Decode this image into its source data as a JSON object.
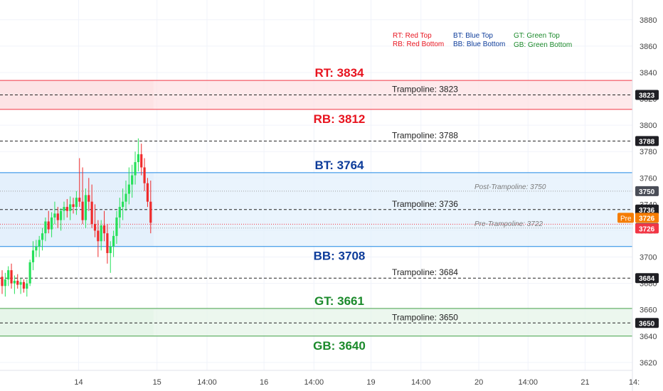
{
  "chart_data": {
    "type": "candlestick",
    "ylim": [
      3614,
      3895
    ],
    "y_ticks": [
      "3620",
      "3640",
      "3660",
      "3680",
      "3700",
      "3720",
      "3740",
      "3760",
      "3780",
      "3800",
      "3820",
      "3840",
      "3860",
      "3880"
    ],
    "x_ticks": [
      {
        "label": "14",
        "pos": 0.1186
      },
      {
        "label": "15",
        "pos": 0.2368
      },
      {
        "label": "14:00",
        "pos": 0.3122
      },
      {
        "label": "16",
        "pos": 0.3982
      },
      {
        "label": "14:00",
        "pos": 0.4735
      },
      {
        "label": "19",
        "pos": 0.5596
      },
      {
        "label": "14:00",
        "pos": 0.6349
      },
      {
        "label": "20",
        "pos": 0.7222
      },
      {
        "label": "14:00",
        "pos": 0.7964
      },
      {
        "label": "21",
        "pos": 0.8825
      },
      {
        "label": "14:",
        "pos": 0.9566
      }
    ],
    "zones": [
      {
        "name": "RT/RB",
        "top": 3834,
        "bottom": 3812,
        "color": "#f23645",
        "fill": "#fde2e4"
      },
      {
        "name": "BT/BB",
        "top": 3764,
        "bottom": 3708,
        "color": "#2962ff",
        "fill": "#e3f0fc"
      },
      {
        "name": "GT/GB",
        "top": 3661,
        "bottom": 3640,
        "color": "#089981",
        "fill": "#e6f4e8"
      }
    ],
    "levels": [
      {
        "label": "RT: 3834",
        "value": 3834,
        "color": "#f23645",
        "text_color": "#e8141f",
        "label_above": true
      },
      {
        "label": "RB: 3812",
        "value": 3812,
        "color": "#f23645",
        "text_color": "#e8141f",
        "label_above": false
      },
      {
        "label": "BT: 3764",
        "value": 3764,
        "color": "#1e88e5",
        "text_color": "#0d3c9a",
        "label_above": true
      },
      {
        "label": "BB: 3708",
        "value": 3708,
        "color": "#1e88e5",
        "text_color": "#0d3c9a",
        "label_above": false
      },
      {
        "label": "GT: 3661",
        "value": 3661,
        "color": "#43a047",
        "text_color": "#1b8a2b",
        "label_above": true
      },
      {
        "label": "GB: 3640",
        "value": 3640,
        "color": "#43a047",
        "text_color": "#1b8a2b",
        "label_above": false
      }
    ],
    "trampolines": [
      {
        "label": "Trampoline: 3823",
        "value": 3823,
        "tag": "3823"
      },
      {
        "label": "Trampoline: 3788",
        "value": 3788,
        "tag": "3788"
      },
      {
        "label": "Trampoline: 3736",
        "value": 3736,
        "tag": "3736"
      },
      {
        "label": "Trampoline: 3684",
        "value": 3684,
        "tag": "3684"
      },
      {
        "label": "Trampoline: 3650",
        "value": 3650,
        "tag": "3650"
      }
    ],
    "minor_levels": [
      {
        "label": "Post-Trampoline: 3750",
        "value": 3750,
        "tag": "3750"
      },
      {
        "label": "Pre-Trampoline: 3722",
        "value": 3722,
        "tag": "3722"
      }
    ],
    "current_price": {
      "value": 3726,
      "tag": "3726",
      "color": "#f23645"
    },
    "premarket": {
      "value": 3726,
      "tag": "3726",
      "label": "Pre",
      "color": "#f57c00"
    },
    "legend": [
      {
        "text": "RT: Red Top",
        "color": "#e8141f"
      },
      {
        "text": "RB: Red Bottom",
        "color": "#e8141f"
      },
      {
        "text": "BT: Blue Top",
        "color": "#0d3c9a"
      },
      {
        "text": "BB: Blue Bottom",
        "color": "#0d3c9a"
      },
      {
        "text": "GT: Green Top",
        "color": "#1b8a2b"
      },
      {
        "text": "GB: Green Bottom",
        "color": "#1b8a2b"
      }
    ],
    "up_color": "#26e05a",
    "down_color": "#ef2b2b",
    "candles": [
      [
        3685,
        3690,
        3672,
        3678
      ],
      [
        3678,
        3688,
        3670,
        3683
      ],
      [
        3683,
        3693,
        3678,
        3690
      ],
      [
        3690,
        3695,
        3676,
        3680
      ],
      [
        3680,
        3686,
        3672,
        3682
      ],
      [
        3682,
        3687,
        3676,
        3679
      ],
      [
        3679,
        3684,
        3672,
        3681
      ],
      [
        3681,
        3683,
        3673,
        3676
      ],
      [
        3676,
        3683,
        3670,
        3680
      ],
      [
        3680,
        3698,
        3678,
        3696
      ],
      [
        3696,
        3712,
        3690,
        3705
      ],
      [
        3705,
        3713,
        3700,
        3708
      ],
      [
        3708,
        3716,
        3700,
        3713
      ],
      [
        3713,
        3722,
        3705,
        3718
      ],
      [
        3718,
        3730,
        3712,
        3727
      ],
      [
        3727,
        3735,
        3718,
        3721
      ],
      [
        3721,
        3734,
        3715,
        3730
      ],
      [
        3730,
        3742,
        3725,
        3733
      ],
      [
        3733,
        3738,
        3722,
        3728
      ],
      [
        3728,
        3737,
        3720,
        3735
      ],
      [
        3735,
        3742,
        3728,
        3738
      ],
      [
        3738,
        3744,
        3730,
        3735
      ],
      [
        3735,
        3746,
        3728,
        3740
      ],
      [
        3740,
        3745,
        3733,
        3738
      ],
      [
        3738,
        3750,
        3732,
        3745
      ],
      [
        3745,
        3775,
        3738,
        3742
      ],
      [
        3742,
        3768,
        3725,
        3728
      ],
      [
        3728,
        3752,
        3722,
        3747
      ],
      [
        3747,
        3760,
        3735,
        3742
      ],
      [
        3742,
        3755,
        3722,
        3725
      ],
      [
        3725,
        3740,
        3715,
        3720
      ],
      [
        3720,
        3728,
        3700,
        3712
      ],
      [
        3712,
        3728,
        3705,
        3724
      ],
      [
        3724,
        3735,
        3712,
        3718
      ],
      [
        3718,
        3725,
        3695,
        3703
      ],
      [
        3703,
        3712,
        3688,
        3708
      ],
      [
        3708,
        3720,
        3700,
        3716
      ],
      [
        3716,
        3735,
        3710,
        3730
      ],
      [
        3730,
        3745,
        3722,
        3738
      ],
      [
        3738,
        3752,
        3728,
        3742
      ],
      [
        3742,
        3758,
        3735,
        3748
      ],
      [
        3748,
        3768,
        3740,
        3755
      ],
      [
        3755,
        3770,
        3745,
        3762
      ],
      [
        3762,
        3780,
        3755,
        3772
      ],
      [
        3772,
        3790,
        3765,
        3778
      ],
      [
        3778,
        3786,
        3762,
        3768
      ],
      [
        3768,
        3775,
        3750,
        3756
      ],
      [
        3756,
        3760,
        3738,
        3742
      ],
      [
        3742,
        3758,
        3718,
        3726
      ]
    ]
  }
}
